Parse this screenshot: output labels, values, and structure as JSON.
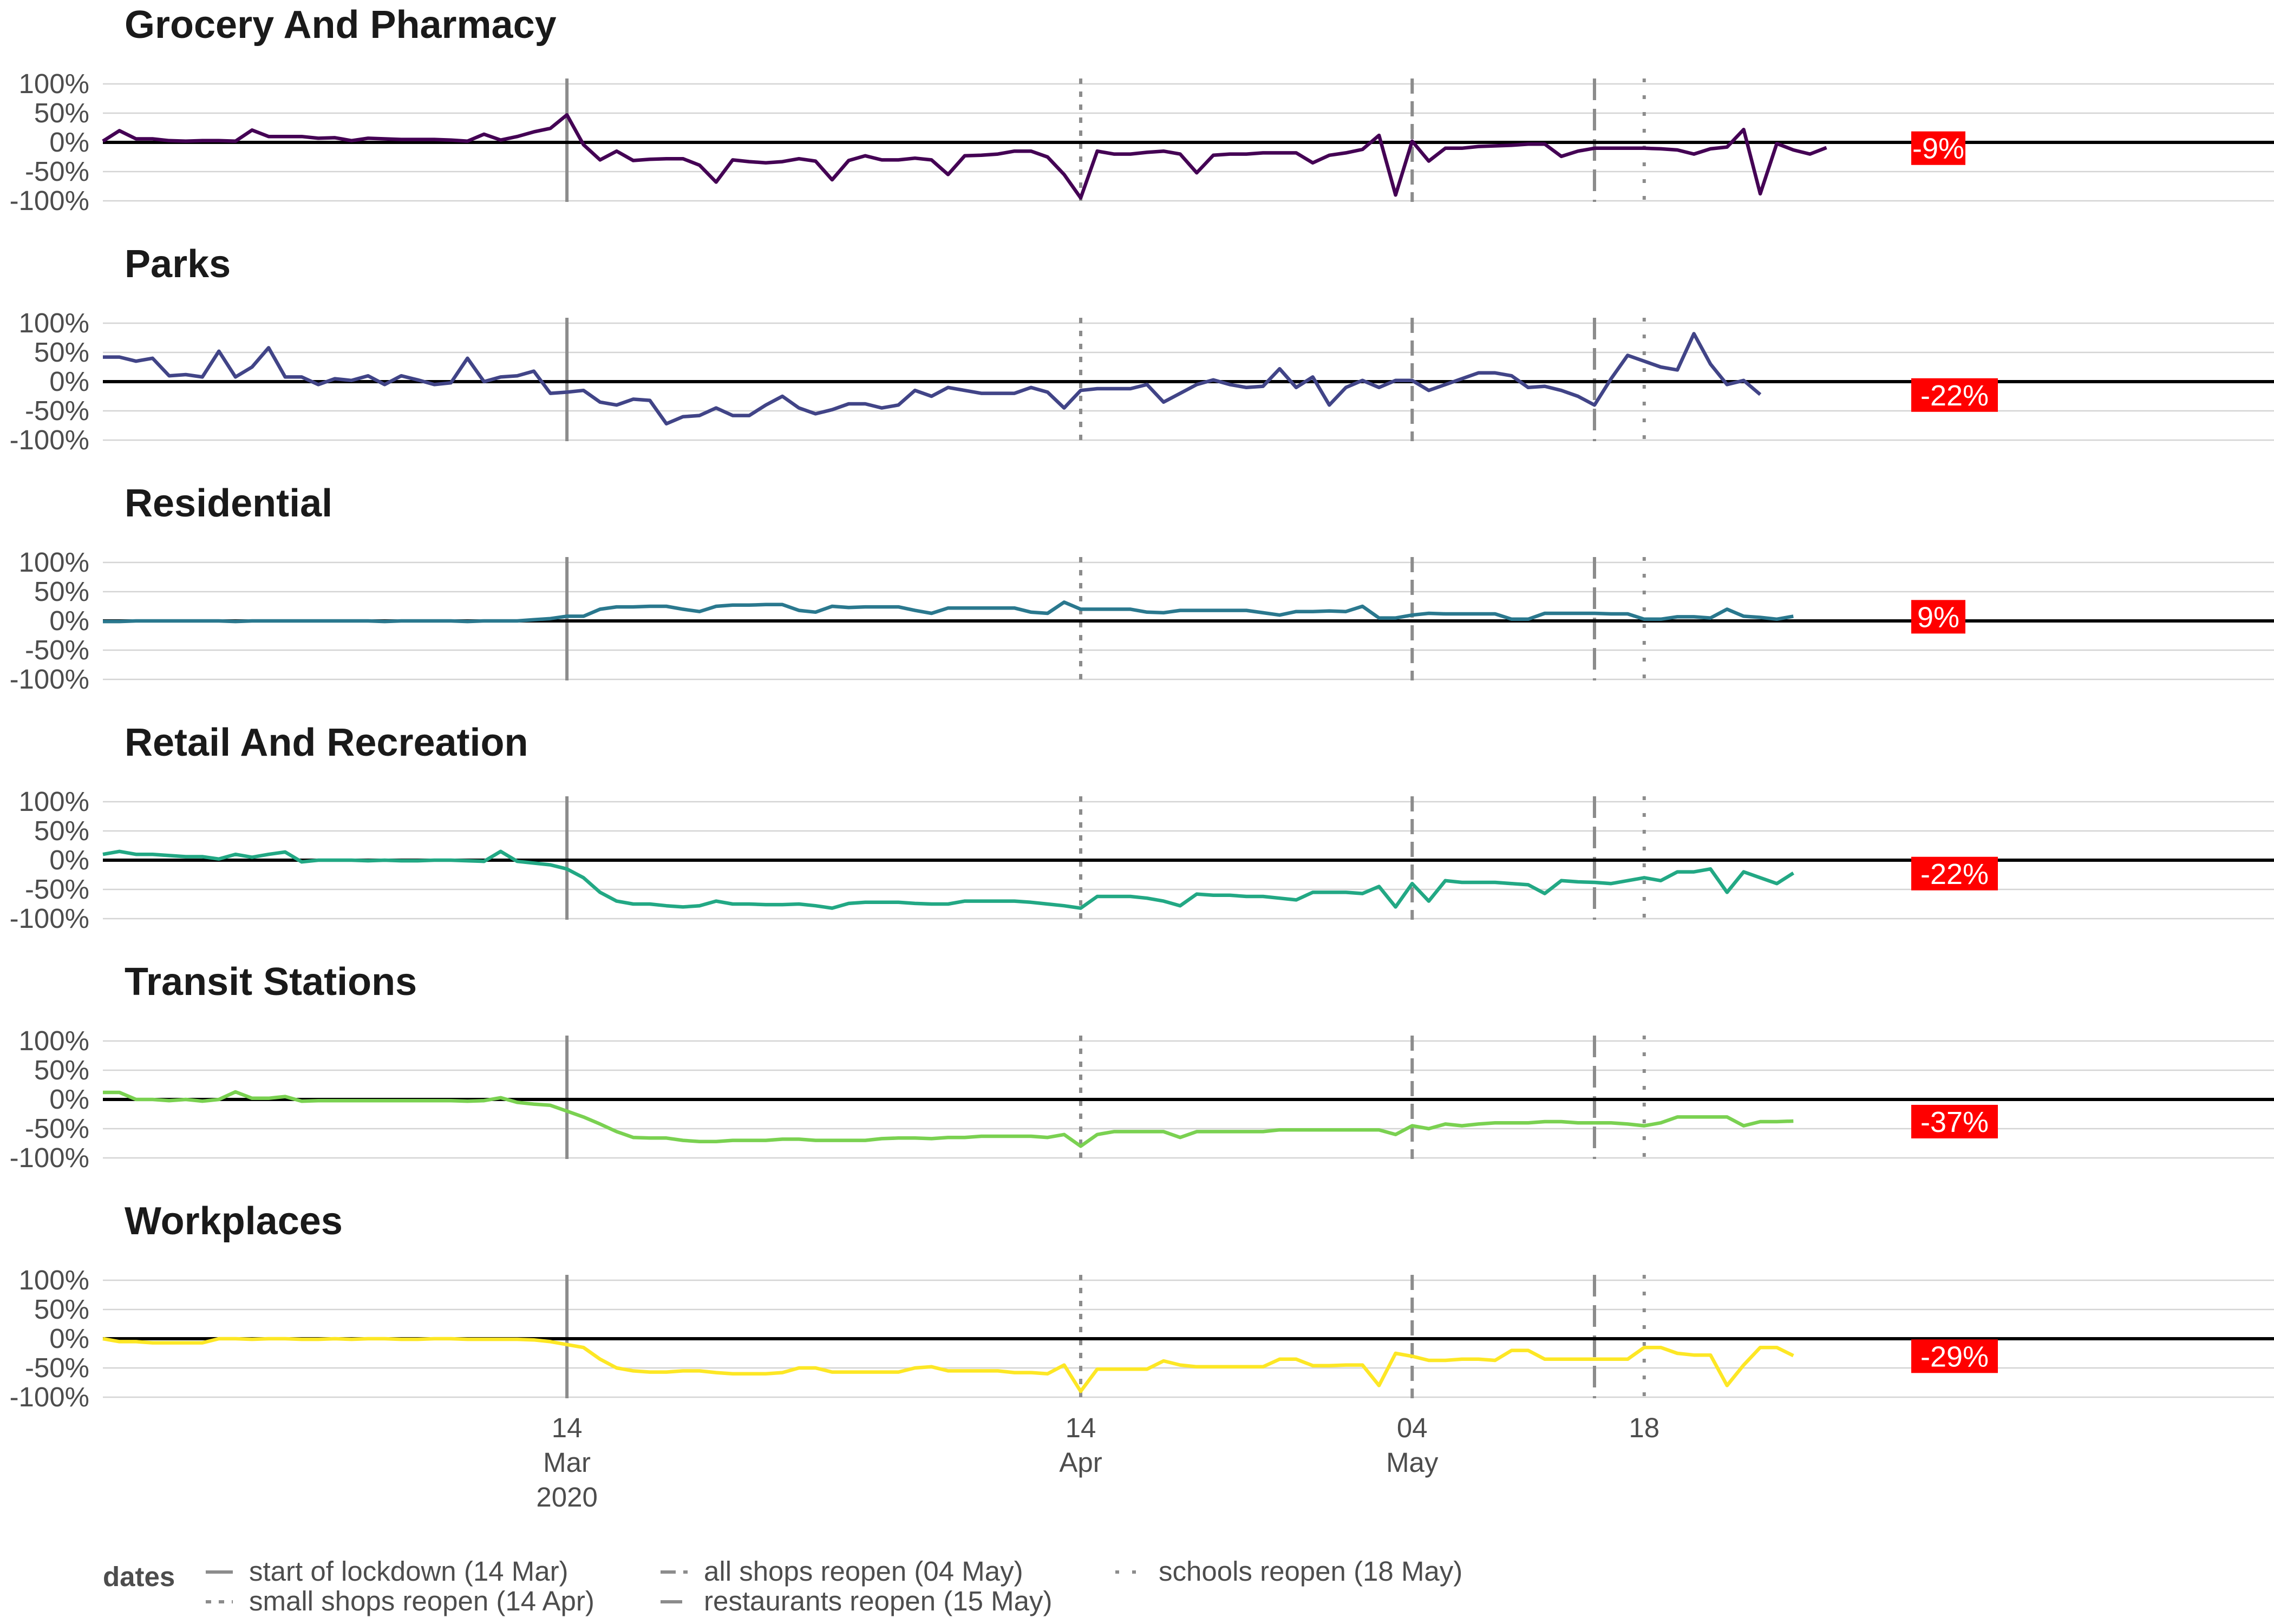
{
  "chart_data": {
    "type": "line",
    "date_start": "2020-02-15",
    "x_range": [
      "2020-02-15",
      "2020-06-25"
    ],
    "y_ticks": [
      100,
      50,
      0,
      -50,
      -100
    ],
    "y_tick_labels": [
      "100%",
      "50%",
      "0%",
      "-50%",
      "-100%"
    ],
    "ylim": [
      -100,
      100
    ],
    "x_ticks": [
      {
        "date": "2020-03-14",
        "label_day": "14",
        "label_month": "Mar",
        "label_year": "2020"
      },
      {
        "date": "2020-04-14",
        "label_day": "14",
        "label_month": "Apr",
        "label_year": ""
      },
      {
        "date": "2020-05-04",
        "label_day": "04",
        "label_month": "May",
        "label_year": ""
      },
      {
        "date": "2020-05-18",
        "label_day": "18",
        "label_month": "",
        "label_year": ""
      }
    ],
    "events": [
      {
        "name": "start of lockdown",
        "date": "2020-03-14",
        "style": "solid",
        "legend": "start of lockdown (14 Mar)"
      },
      {
        "name": "small shops reopen",
        "date": "2020-04-14",
        "style": "dotted",
        "legend": "small shops reopen (14 Apr)"
      },
      {
        "name": "all shops reopen",
        "date": "2020-05-04",
        "style": "dashed",
        "legend": "all shops reopen (04 May)"
      },
      {
        "name": "restaurants reopen",
        "date": "2020-05-15",
        "style": "longdash",
        "legend": "restaurants reopen (15 May)"
      },
      {
        "name": "schools reopen",
        "date": "2020-05-18",
        "style": "dotted-sparse",
        "legend": "schools reopen (18 May)"
      }
    ],
    "legend_title": "dates",
    "series": [
      {
        "name": "Grocery And Pharmacy",
        "color": "#440154",
        "last_label": "-9%",
        "values": [
          2,
          20,
          6,
          6,
          3,
          2,
          3,
          3,
          2,
          21,
          10,
          10,
          10,
          7,
          8,
          3,
          7,
          6,
          5,
          5,
          5,
          4,
          2,
          14,
          4,
          10,
          18,
          24,
          47,
          -4,
          -30,
          -15,
          -31,
          -29,
          -28,
          -28,
          -39,
          -68,
          -30,
          -33,
          -35,
          -33,
          -28,
          -32,
          -64,
          -31,
          -23,
          -30,
          -30,
          -27,
          -30,
          -55,
          -23,
          -22,
          -20,
          -15,
          -15,
          -25,
          -55,
          -95,
          -15,
          -20,
          -20,
          -17,
          -15,
          -20,
          -52,
          -22,
          -20,
          -20,
          -18,
          -18,
          -18,
          -35,
          -22,
          -18,
          -12,
          12,
          -90,
          2,
          -32,
          -10,
          -10,
          -7,
          -6,
          -5,
          -3,
          -3,
          -24,
          -15,
          -10,
          -10,
          -10,
          -10,
          -11,
          -13,
          -20,
          -11,
          -8,
          22,
          -88,
          -2,
          -13,
          -20,
          -9
        ]
      },
      {
        "name": "Parks",
        "color": "#414487",
        "last_label": "-22%",
        "values": [
          42,
          42,
          35,
          40,
          10,
          12,
          8,
          52,
          8,
          25,
          58,
          8,
          8,
          -5,
          5,
          2,
          10,
          -5,
          10,
          3,
          -5,
          -2,
          40,
          0,
          8,
          10,
          18,
          -20,
          -18,
          -15,
          -35,
          -40,
          -30,
          -32,
          -72,
          -60,
          -58,
          -45,
          -58,
          -58,
          -40,
          -25,
          -45,
          -55,
          -48,
          -38,
          -38,
          -45,
          -40,
          -15,
          -25,
          -10,
          -15,
          -20,
          -20,
          -20,
          -10,
          -18,
          -45,
          -15,
          -12,
          -12,
          -12,
          -5,
          -35,
          -20,
          -5,
          3,
          -5,
          -10,
          -8,
          22,
          -10,
          8,
          -40,
          -10,
          2,
          -10,
          2,
          2,
          -15,
          -5,
          5,
          15,
          15,
          10,
          -10,
          -8,
          -15,
          -25,
          -40,
          5,
          45,
          35,
          25,
          20,
          82,
          30,
          -5,
          2,
          -22
        ]
      },
      {
        "name": "Residential",
        "color": "#2a788e",
        "last_label": "9%",
        "values": [
          -1,
          -1,
          0,
          0,
          0,
          0,
          0,
          0,
          -1,
          0,
          0,
          0,
          0,
          0,
          0,
          0,
          0,
          -1,
          0,
          0,
          0,
          0,
          -1,
          0,
          0,
          0,
          2,
          4,
          8,
          8,
          20,
          24,
          24,
          25,
          25,
          20,
          16,
          25,
          27,
          27,
          28,
          28,
          18,
          15,
          25,
          23,
          24,
          24,
          24,
          18,
          13,
          22,
          22,
          22,
          22,
          22,
          15,
          13,
          32,
          20,
          20,
          20,
          20,
          15,
          14,
          18,
          18,
          18,
          18,
          18,
          14,
          10,
          16,
          16,
          17,
          16,
          25,
          5,
          5,
          10,
          13,
          12,
          12,
          12,
          12,
          3,
          3,
          13,
          13,
          13,
          13,
          12,
          12,
          3,
          3,
          7,
          7,
          5,
          20,
          8,
          6,
          3,
          8
        ]
      },
      {
        "name": "Retail And Recreation",
        "color": "#22a884",
        "last_label": "-22%",
        "values": [
          10,
          15,
          10,
          10,
          8,
          6,
          6,
          2,
          10,
          5,
          10,
          14,
          -3,
          0,
          0,
          0,
          -1,
          0,
          -1,
          -1,
          0,
          0,
          -1,
          -2,
          15,
          -2,
          -5,
          -8,
          -15,
          -30,
          -55,
          -70,
          -75,
          -75,
          -78,
          -80,
          -78,
          -70,
          -75,
          -75,
          -76,
          -76,
          -75,
          -78,
          -82,
          -74,
          -72,
          -72,
          -72,
          -74,
          -75,
          -75,
          -70,
          -70,
          -70,
          -70,
          -72,
          -75,
          -78,
          -82,
          -62,
          -62,
          -62,
          -65,
          -70,
          -78,
          -58,
          -60,
          -60,
          -62,
          -62,
          -65,
          -68,
          -55,
          -55,
          -55,
          -57,
          -45,
          -80,
          -40,
          -70,
          -35,
          -38,
          -38,
          -38,
          -40,
          -42,
          -57,
          -35,
          -37,
          -38,
          -40,
          -35,
          -30,
          -35,
          -20,
          -20,
          -15,
          -55,
          -20,
          -30,
          -40,
          -22
        ]
      },
      {
        "name": "Transit Stations",
        "color": "#7ad151",
        "last_label": "-37%",
        "values": [
          12,
          12,
          0,
          0,
          -2,
          0,
          -3,
          0,
          13,
          2,
          2,
          5,
          -3,
          -2,
          -2,
          -2,
          -2,
          -2,
          -2,
          -2,
          -2,
          -2,
          -3,
          -2,
          3,
          -5,
          -8,
          -10,
          -20,
          -30,
          -42,
          -55,
          -65,
          -66,
          -66,
          -70,
          -72,
          -72,
          -70,
          -70,
          -70,
          -68,
          -68,
          -70,
          -70,
          -70,
          -70,
          -67,
          -66,
          -66,
          -67,
          -65,
          -65,
          -63,
          -63,
          -63,
          -63,
          -65,
          -60,
          -80,
          -60,
          -55,
          -55,
          -55,
          -55,
          -65,
          -55,
          -55,
          -55,
          -55,
          -55,
          -52,
          -52,
          -52,
          -52,
          -52,
          -52,
          -52,
          -60,
          -45,
          -50,
          -42,
          -45,
          -42,
          -40,
          -40,
          -40,
          -38,
          -38,
          -40,
          -40,
          -40,
          -42,
          -45,
          -40,
          -30,
          -30,
          -30,
          -30,
          -45,
          -38,
          -38,
          -37
        ]
      },
      {
        "name": "Workplaces",
        "color": "#fde725",
        "last_label": "-29%",
        "values": [
          0,
          -5,
          -5,
          -7,
          -7,
          -7,
          -7,
          0,
          0,
          -1,
          0,
          0,
          -1,
          -1,
          0,
          -1,
          0,
          0,
          -1,
          -1,
          0,
          0,
          -1,
          -1,
          -1,
          -1,
          -2,
          -5,
          -10,
          -15,
          -35,
          -50,
          -55,
          -57,
          -57,
          -55,
          -55,
          -58,
          -60,
          -60,
          -60,
          -58,
          -50,
          -50,
          -57,
          -57,
          -57,
          -57,
          -57,
          -50,
          -48,
          -55,
          -55,
          -55,
          -55,
          -58,
          -58,
          -60,
          -45,
          -90,
          -52,
          -52,
          -52,
          -52,
          -38,
          -45,
          -48,
          -48,
          -48,
          -48,
          -48,
          -35,
          -35,
          -46,
          -46,
          -45,
          -45,
          -80,
          -25,
          -30,
          -37,
          -37,
          -35,
          -35,
          -37,
          -20,
          -20,
          -35,
          -35,
          -35,
          -35,
          -35,
          -35,
          -15,
          -15,
          -25,
          -28,
          -28,
          -80,
          -45,
          -15,
          -15,
          -29
        ]
      }
    ]
  }
}
